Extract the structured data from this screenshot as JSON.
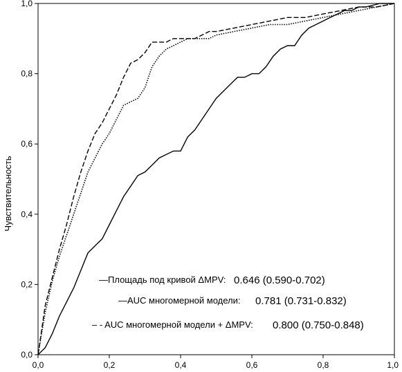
{
  "chart_data": {
    "type": "line",
    "title": "",
    "xlabel": "",
    "ylabel": "Чувствительность",
    "xlim": [
      0,
      1
    ],
    "ylim": [
      0,
      1
    ],
    "x_ticks": [
      "0,0",
      "0,2",
      "0,4",
      "0,6",
      "0,8",
      "1,0"
    ],
    "y_ticks": [
      "0,0",
      "0,2",
      "0,4",
      "0,6",
      "0,8",
      "1,0"
    ],
    "grid": false,
    "legend_position": "bottom-right",
    "series": [
      {
        "name": "—Площадь под кривой ΔMPV:",
        "auc": "0.646 (0.590-0.702)",
        "line_style": "solid",
        "x": [
          0,
          0.02,
          0.04,
          0.06,
          0.08,
          0.1,
          0.12,
          0.14,
          0.16,
          0.18,
          0.2,
          0.22,
          0.24,
          0.26,
          0.28,
          0.3,
          0.32,
          0.34,
          0.36,
          0.38,
          0.4,
          0.42,
          0.44,
          0.46,
          0.48,
          0.5,
          0.52,
          0.54,
          0.56,
          0.58,
          0.6,
          0.62,
          0.64,
          0.66,
          0.68,
          0.7,
          0.72,
          0.74,
          0.76,
          0.78,
          0.8,
          0.82,
          0.84,
          0.86,
          0.88,
          0.9,
          0.92,
          0.94,
          0.96,
          1.0
        ],
        "y": [
          0,
          0.02,
          0.06,
          0.11,
          0.15,
          0.19,
          0.24,
          0.29,
          0.31,
          0.33,
          0.37,
          0.41,
          0.45,
          0.48,
          0.51,
          0.52,
          0.54,
          0.56,
          0.57,
          0.58,
          0.58,
          0.62,
          0.64,
          0.67,
          0.7,
          0.73,
          0.75,
          0.77,
          0.79,
          0.79,
          0.8,
          0.8,
          0.82,
          0.85,
          0.87,
          0.88,
          0.88,
          0.91,
          0.93,
          0.94,
          0.95,
          0.96,
          0.97,
          0.98,
          0.98,
          0.99,
          0.99,
          0.995,
          1.0,
          1.0
        ]
      },
      {
        "name": "—AUC многомерной модели:",
        "auc": "0.781 (0.731-0.832)",
        "line_style": "dotted",
        "x": [
          0,
          0.02,
          0.04,
          0.06,
          0.08,
          0.1,
          0.12,
          0.14,
          0.16,
          0.18,
          0.2,
          0.22,
          0.24,
          0.26,
          0.28,
          0.3,
          0.32,
          0.34,
          0.36,
          0.38,
          0.4,
          0.42,
          0.44,
          0.46,
          0.48,
          0.5,
          0.55,
          0.6,
          0.65,
          0.7,
          0.75,
          0.8,
          0.85,
          0.9,
          0.95,
          1.0
        ],
        "y": [
          0,
          0.12,
          0.21,
          0.28,
          0.34,
          0.4,
          0.46,
          0.52,
          0.56,
          0.6,
          0.63,
          0.67,
          0.71,
          0.72,
          0.73,
          0.76,
          0.82,
          0.85,
          0.87,
          0.88,
          0.89,
          0.9,
          0.9,
          0.9,
          0.9,
          0.91,
          0.92,
          0.93,
          0.94,
          0.94,
          0.95,
          0.96,
          0.97,
          0.98,
          0.99,
          1.0
        ]
      },
      {
        "name": "– - AUC многомерной модели + ΔMPV:",
        "auc": "0.800 (0.750-0.848)",
        "line_style": "dashed",
        "x": [
          0,
          0.02,
          0.04,
          0.06,
          0.08,
          0.1,
          0.12,
          0.14,
          0.16,
          0.18,
          0.2,
          0.22,
          0.24,
          0.26,
          0.28,
          0.3,
          0.32,
          0.34,
          0.36,
          0.38,
          0.4,
          0.42,
          0.44,
          0.46,
          0.48,
          0.5,
          0.55,
          0.6,
          0.65,
          0.7,
          0.75,
          0.8,
          0.85,
          0.9,
          0.95,
          1.0
        ],
        "y": [
          0,
          0.14,
          0.22,
          0.3,
          0.37,
          0.45,
          0.52,
          0.58,
          0.63,
          0.66,
          0.7,
          0.74,
          0.79,
          0.83,
          0.84,
          0.86,
          0.89,
          0.89,
          0.89,
          0.9,
          0.9,
          0.9,
          0.9,
          0.91,
          0.92,
          0.92,
          0.93,
          0.94,
          0.95,
          0.96,
          0.96,
          0.97,
          0.98,
          0.99,
          0.99,
          1.0
        ]
      }
    ]
  }
}
